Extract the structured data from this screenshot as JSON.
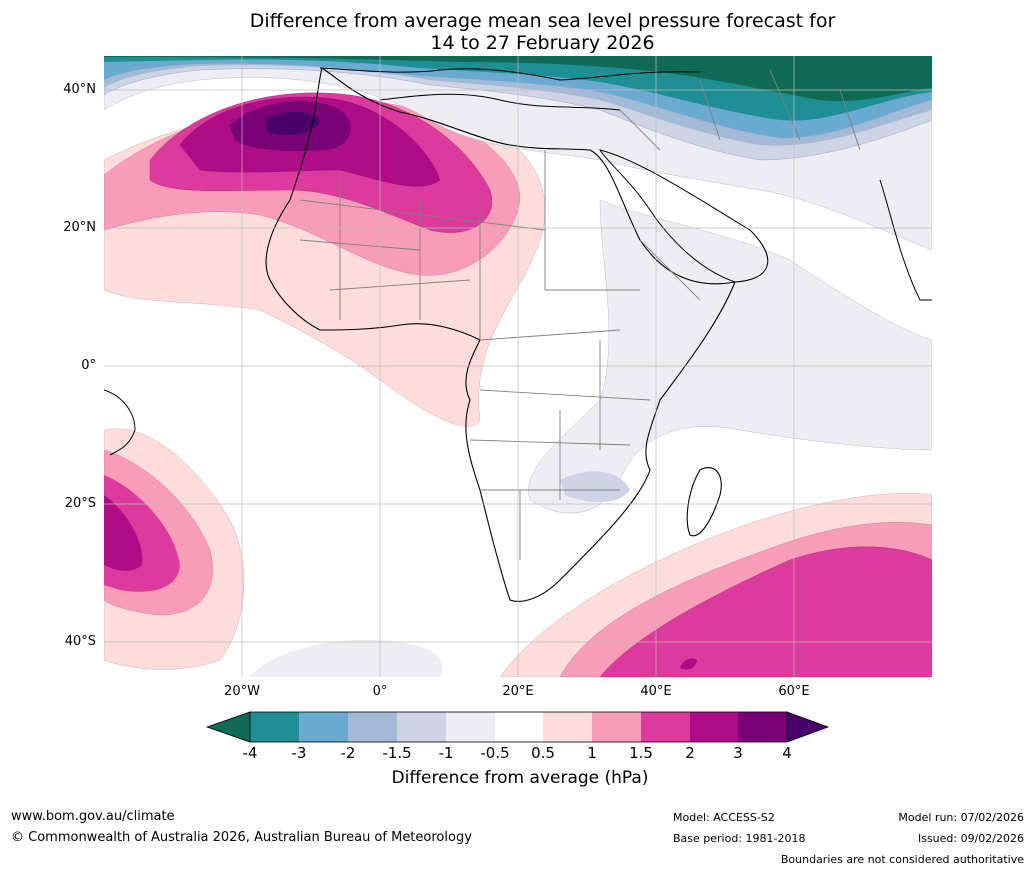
{
  "title": {
    "line1": "Difference from average mean sea level pressure forecast for",
    "line2": "14 to 27 February 2026"
  },
  "map": {
    "lat_labels": [
      "40°N",
      "20°N",
      "0°",
      "20°S",
      "40°S"
    ],
    "lon_labels": [
      "20°W",
      "0°",
      "20°E",
      "40°E",
      "60°E"
    ],
    "lon_range": [
      -40,
      80
    ],
    "lat_range": [
      -45,
      45
    ]
  },
  "colorbar": {
    "ticks": [
      "-4",
      "-3",
      "-2",
      "-1.5",
      "-1",
      "-0.5",
      "0.5",
      "1",
      "1.5",
      "2",
      "3",
      "4"
    ],
    "colors": [
      "#0f6b56",
      "#1e8f94",
      "#6aa9d0",
      "#a3b9d6",
      "#cfd3e6",
      "#efedf4",
      "#ffffff",
      "#fddcdc",
      "#f89cb7",
      "#dd3a9d",
      "#b00c88",
      "#7b0176",
      "#49006a"
    ],
    "label": "Difference from average (hPa)"
  },
  "footer": {
    "website": "www.bom.gov.au/climate",
    "copyright": "© Commonwealth of Australia 2026, Australian Bureau of Meteorology",
    "model": "Model: ACCESS-S2",
    "base_period": "Base period: 1981-2018",
    "model_run": "Model run: 07/02/2026",
    "issued": "Issued: 09/02/2026",
    "disclaimer": "Boundaries are not considered authoritative"
  }
}
